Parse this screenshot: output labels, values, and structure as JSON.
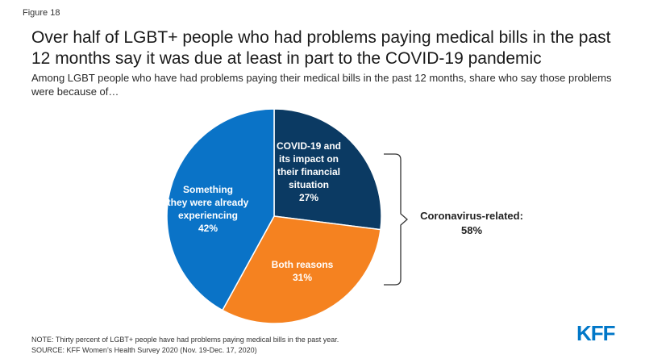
{
  "figure_label": "Figure 18",
  "title": "Over half of LGBT+ people who had problems paying medical bills in the past 12 months say it was due at least in part to the COVID-19 pandemic",
  "subtitle": "Among LGBT people who have had problems paying their medical bills in the past 12 months, share who say those problems were because of…",
  "note": "NOTE: Thirty percent of LGBT+ people have had problems paying medical bills in the past year.",
  "source": "SOURCE: KFF Women’s Health Survey 2020 (Nov. 19-Dec. 17, 2020)",
  "logo": "KFF",
  "bracket_label": [
    "Coronavirus-related:",
    "58%"
  ],
  "chart_data": {
    "type": "pie",
    "slices": [
      {
        "label_lines": [
          "COVID-19 and",
          "its impact on",
          "their financial",
          "situation"
        ],
        "value": 27,
        "value_label": "27%",
        "color": "#0b3a63"
      },
      {
        "label_lines": [
          "Both reasons"
        ],
        "value": 31,
        "value_label": "31%",
        "color": "#f58220"
      },
      {
        "label_lines": [
          "Something",
          "they were already",
          "experiencing"
        ],
        "value": 42,
        "value_label": "42%",
        "color": "#0a73c7"
      }
    ]
  }
}
